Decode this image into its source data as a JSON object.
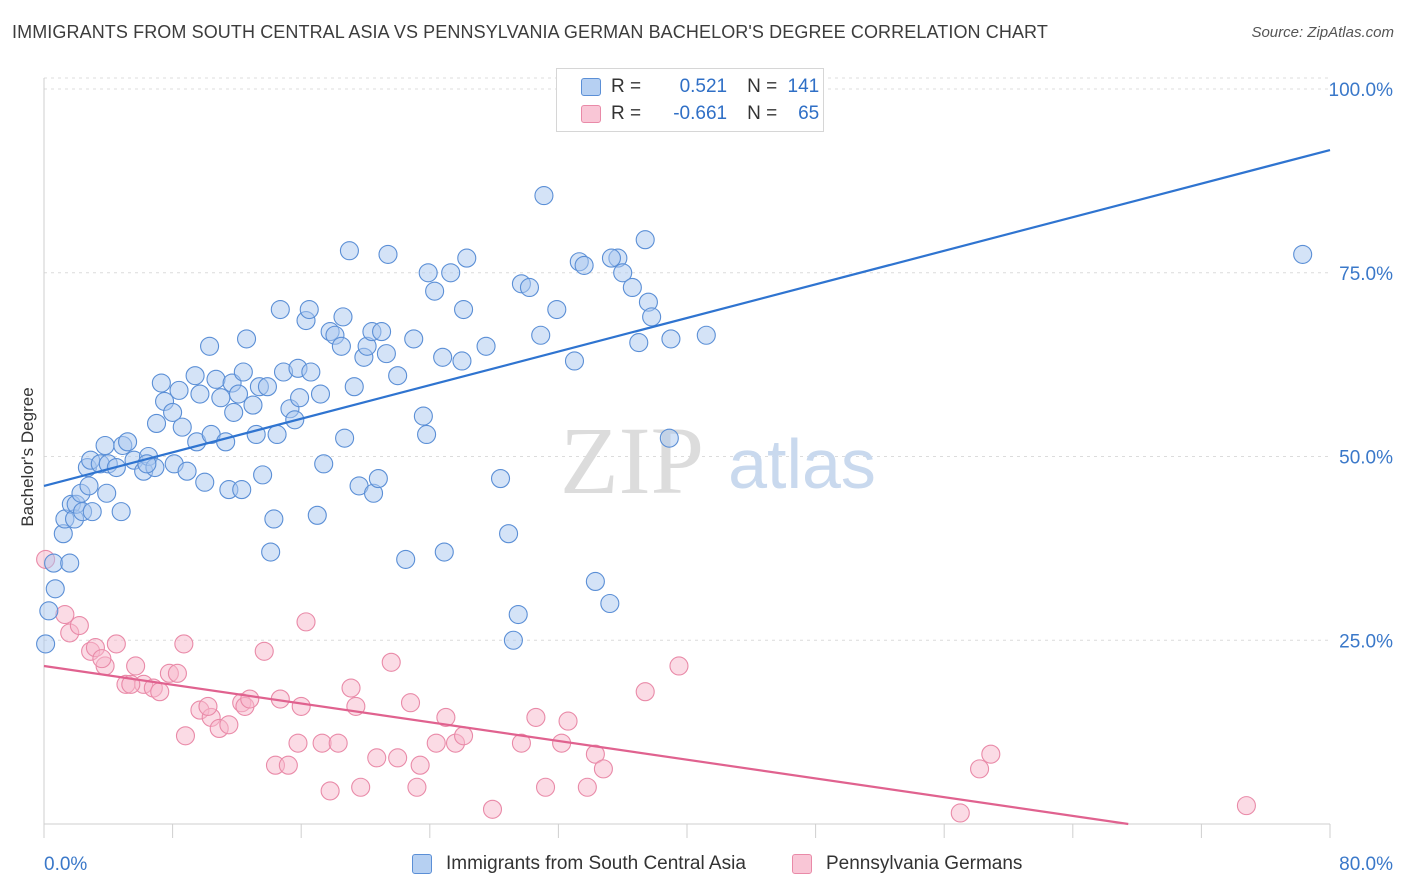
{
  "header": {
    "title": "IMMIGRANTS FROM SOUTH CENTRAL ASIA VS PENNSYLVANIA GERMAN BACHELOR'S DEGREE CORRELATION CHART",
    "source": "Source: ZipAtlas.com"
  },
  "watermark": {
    "zip": "ZIP",
    "atlas": "atlas"
  },
  "colors": {
    "blue_fill": "#a9c8f0",
    "blue_stroke": "#5b8fd6",
    "blue_line": "#2f74d0",
    "pink_fill": "#f7b8cc",
    "pink_stroke": "#e98aa8",
    "pink_line": "#e0628f",
    "axis_text": "#3a78c9",
    "grid": "#dcdcdc"
  },
  "legend": {
    "r_label": "R =",
    "n_label": "N =",
    "rows": [
      {
        "r": "0.521",
        "n": "141"
      },
      {
        "r": "-0.661",
        "n": "65"
      }
    ]
  },
  "chart_data": {
    "type": "scatter",
    "xlabel": "",
    "ylabel": "Bachelor's Degree",
    "xlim": [
      0,
      80
    ],
    "ylim": [
      0,
      100
    ],
    "x_tick_labels": [
      "0.0%",
      "80.0%"
    ],
    "y_tick_labels": [
      "25.0%",
      "50.0%",
      "75.0%",
      "100.0%"
    ],
    "y_ticks": [
      25,
      50,
      75,
      100
    ],
    "grid": true,
    "legend_position": "top-center",
    "series": [
      {
        "name": "Immigrants from South Central Asia",
        "trend": {
          "x": [
            0,
            80
          ],
          "y": [
            46,
            91.7
          ]
        },
        "points": [
          [
            0.1,
            24.5
          ],
          [
            0.3,
            29
          ],
          [
            0.6,
            35.5
          ],
          [
            0.7,
            32
          ],
          [
            1.2,
            39.5
          ],
          [
            1.3,
            41.5
          ],
          [
            1.6,
            35.5
          ],
          [
            1.7,
            43.5
          ],
          [
            1.9,
            41.5
          ],
          [
            2.0,
            43.5
          ],
          [
            2.3,
            45
          ],
          [
            2.4,
            42.5
          ],
          [
            2.8,
            46
          ],
          [
            3.0,
            42.5
          ],
          [
            2.7,
            48.5
          ],
          [
            2.9,
            49.5
          ],
          [
            3.5,
            49
          ],
          [
            3.9,
            45
          ],
          [
            4.0,
            49
          ],
          [
            3.8,
            51.5
          ],
          [
            4.5,
            48.5
          ],
          [
            4.8,
            42.5
          ],
          [
            4.9,
            51.5
          ],
          [
            5.2,
            52
          ],
          [
            5.6,
            49.5
          ],
          [
            6.2,
            48
          ],
          [
            6.5,
            50
          ],
          [
            6.9,
            48.5
          ],
          [
            6.4,
            49
          ],
          [
            7.0,
            54.5
          ],
          [
            7.3,
            60
          ],
          [
            7.5,
            57.5
          ],
          [
            8.0,
            56
          ],
          [
            8.1,
            49
          ],
          [
            8.4,
            59
          ],
          [
            8.6,
            54
          ],
          [
            8.9,
            48
          ],
          [
            9.4,
            61
          ],
          [
            9.5,
            52
          ],
          [
            9.7,
            58.5
          ],
          [
            10.0,
            46.5
          ],
          [
            10.3,
            65
          ],
          [
            10.4,
            53
          ],
          [
            10.7,
            60.5
          ],
          [
            11.0,
            58
          ],
          [
            11.3,
            52
          ],
          [
            11.5,
            45.5
          ],
          [
            11.7,
            60
          ],
          [
            11.8,
            56
          ],
          [
            12.1,
            58.5
          ],
          [
            12.3,
            45.5
          ],
          [
            12.4,
            61.5
          ],
          [
            12.6,
            66
          ],
          [
            13.0,
            57
          ],
          [
            13.2,
            53
          ],
          [
            13.4,
            59.5
          ],
          [
            13.6,
            47.5
          ],
          [
            13.9,
            59.5
          ],
          [
            14.3,
            41.5
          ],
          [
            14.1,
            37
          ],
          [
            14.5,
            53
          ],
          [
            14.7,
            70
          ],
          [
            14.9,
            61.5
          ],
          [
            15.3,
            56.5
          ],
          [
            15.6,
            55
          ],
          [
            15.9,
            58
          ],
          [
            15.8,
            62
          ],
          [
            16.3,
            68.5
          ],
          [
            16.5,
            70
          ],
          [
            16.6,
            61.5
          ],
          [
            17.0,
            42
          ],
          [
            17.2,
            58.5
          ],
          [
            17.4,
            49
          ],
          [
            17.8,
            67
          ],
          [
            18.1,
            66.5
          ],
          [
            18.5,
            65
          ],
          [
            18.6,
            69
          ],
          [
            18.7,
            52.5
          ],
          [
            19.0,
            78
          ],
          [
            19.3,
            59.5
          ],
          [
            19.6,
            46
          ],
          [
            19.9,
            63.5
          ],
          [
            20.1,
            65
          ],
          [
            20.4,
            67
          ],
          [
            20.5,
            45
          ],
          [
            20.8,
            47
          ],
          [
            21.0,
            67
          ],
          [
            21.3,
            64
          ],
          [
            21.4,
            77.5
          ],
          [
            22.0,
            61
          ],
          [
            22.5,
            36
          ],
          [
            23.0,
            66
          ],
          [
            23.6,
            55.5
          ],
          [
            23.8,
            53
          ],
          [
            23.9,
            75
          ],
          [
            24.3,
            72.5
          ],
          [
            24.8,
            63.5
          ],
          [
            24.9,
            37
          ],
          [
            25.3,
            75
          ],
          [
            26.0,
            63
          ],
          [
            26.1,
            70
          ],
          [
            26.3,
            77
          ],
          [
            27.5,
            65
          ],
          [
            28.4,
            47
          ],
          [
            28.9,
            39.5
          ],
          [
            29.2,
            25
          ],
          [
            29.7,
            73.5
          ],
          [
            30.2,
            73
          ],
          [
            29.5,
            28.5
          ],
          [
            30.9,
            66.5
          ],
          [
            31.1,
            85.5
          ],
          [
            31.9,
            70
          ],
          [
            33.0,
            63
          ],
          [
            33.3,
            76.5
          ],
          [
            33.6,
            76
          ],
          [
            34.3,
            33
          ],
          [
            35.2,
            30
          ],
          [
            35.7,
            77
          ],
          [
            35.3,
            77
          ],
          [
            36.0,
            75
          ],
          [
            36.6,
            73
          ],
          [
            37.0,
            65.5
          ],
          [
            37.4,
            79.5
          ],
          [
            37.6,
            71
          ],
          [
            37.8,
            69
          ],
          [
            38.9,
            52.5
          ],
          [
            39.0,
            66
          ],
          [
            41.2,
            66.5
          ],
          [
            78.3,
            77.5
          ]
        ]
      },
      {
        "name": "Pennsylvania Germans",
        "trend": {
          "x": [
            0,
            80
          ],
          "y": [
            21.5,
            -4
          ]
        },
        "points": [
          [
            0.1,
            36
          ],
          [
            1.3,
            28.5
          ],
          [
            1.6,
            26
          ],
          [
            2.2,
            27
          ],
          [
            2.9,
            23.5
          ],
          [
            3.2,
            24
          ],
          [
            3.8,
            21.5
          ],
          [
            3.6,
            22.5
          ],
          [
            4.5,
            24.5
          ],
          [
            5.1,
            19
          ],
          [
            5.7,
            21.5
          ],
          [
            6.2,
            19
          ],
          [
            6.8,
            18.5
          ],
          [
            7.2,
            18
          ],
          [
            7.8,
            20.5
          ],
          [
            8.3,
            20.5
          ],
          [
            8.8,
            12
          ],
          [
            8.7,
            24.5
          ],
          [
            9.7,
            15.5
          ],
          [
            10.4,
            14.5
          ],
          [
            10.9,
            13
          ],
          [
            11.5,
            13.5
          ],
          [
            12.3,
            16.5
          ],
          [
            12.5,
            16
          ],
          [
            12.8,
            17
          ],
          [
            13.7,
            23.5
          ],
          [
            14.4,
            8
          ],
          [
            14.7,
            17
          ],
          [
            15.2,
            8
          ],
          [
            15.8,
            11
          ],
          [
            16.0,
            16
          ],
          [
            16.3,
            27.5
          ],
          [
            17.3,
            11
          ],
          [
            17.8,
            4.5
          ],
          [
            18.3,
            11
          ],
          [
            19.1,
            18.5
          ],
          [
            19.4,
            16
          ],
          [
            19.7,
            5
          ],
          [
            20.7,
            9
          ],
          [
            21.6,
            22
          ],
          [
            22.0,
            9
          ],
          [
            22.8,
            16.5
          ],
          [
            23.2,
            5
          ],
          [
            23.4,
            8
          ],
          [
            24.4,
            11
          ],
          [
            25.0,
            14.5
          ],
          [
            25.6,
            11
          ],
          [
            26.1,
            12
          ],
          [
            27.9,
            2
          ],
          [
            29.7,
            11
          ],
          [
            30.6,
            14.5
          ],
          [
            31.2,
            5
          ],
          [
            32.2,
            11
          ],
          [
            32.6,
            14
          ],
          [
            33.8,
            5
          ],
          [
            34.3,
            9.5
          ],
          [
            34.8,
            7.5
          ],
          [
            37.4,
            18
          ],
          [
            39.5,
            21.5
          ],
          [
            57.0,
            1.5
          ],
          [
            58.2,
            7.5
          ],
          [
            58.9,
            9.5
          ],
          [
            74.8,
            2.5
          ],
          [
            10.2,
            16
          ],
          [
            5.4,
            19
          ]
        ]
      }
    ]
  },
  "bottom_legend": [
    {
      "label": "Immigrants from South Central Asia"
    },
    {
      "label": "Pennsylvania Germans"
    }
  ]
}
